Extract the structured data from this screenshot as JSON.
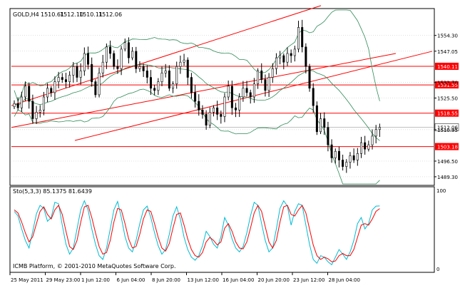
{
  "header": {
    "symbol": "GOLD,H4",
    "open": "1510.61",
    "high": "1512.10",
    "low": "1510.11",
    "close": "1512.06"
  },
  "indicator": {
    "label": "Sto(5,3,3) 85.1375 81.6439",
    "scale_top": "100",
    "scale_bottom": "0"
  },
  "watermark": "ICMB Platform, © 2001-2010 MetaQuotes Software Corp.",
  "colors": {
    "background": "#ffffff",
    "grid": "#c0c0c0",
    "axis_text": "#000000",
    "candle": "#000000",
    "channel": "#ff0000",
    "hline": "#ff0000",
    "bollinger": "#2e8b57",
    "stoch_main": "#00bcd4",
    "stoch_signal": "#ff0000"
  },
  "chart_data": {
    "type": "candlestick",
    "symbol": "GOLD",
    "timeframe": "H4",
    "ylim": [
      1486,
      1566
    ],
    "price_ticks": [
      "1554.30",
      "1547.05",
      "1532.70",
      "1525.50",
      "1510.95",
      "1496.50",
      "1489.30"
    ],
    "price_ticks_values": [
      1554.3,
      1547.05,
      1532.7,
      1525.5,
      1510.95,
      1496.5,
      1489.3
    ],
    "time_labels": [
      "25 May 2011",
      "29 May 23:00",
      "1 Jun 12:00",
      "6 Jun 04:00",
      "8 Jun 20:00",
      "13 Jun 12:00",
      "16 Jun 04:00",
      "20 Jun 20:00",
      "23 Jun 12:00",
      "28 Jun 04:00"
    ],
    "horizontal_levels": [
      {
        "label": "1540.11",
        "value": 1540.11
      },
      {
        "label": "1531.55",
        "value": 1531.55
      },
      {
        "label": "1518.55",
        "value": 1518.55
      },
      {
        "label": "1503.18",
        "value": 1503.18
      }
    ],
    "current_price": {
      "label": "1512.06",
      "value": 1512.06
    },
    "closes": [
      1523,
      1521,
      1526,
      1531,
      1524,
      1516,
      1519,
      1520,
      1526,
      1530,
      1528,
      1533,
      1535,
      1534,
      1533,
      1536,
      1540,
      1535,
      1538,
      1546,
      1541,
      1533,
      1527,
      1537,
      1542,
      1549,
      1546,
      1540,
      1539,
      1548,
      1551,
      1544,
      1547,
      1539,
      1540,
      1538,
      1535,
      1530,
      1529,
      1533,
      1537,
      1538,
      1530,
      1532,
      1540,
      1542,
      1543,
      1535,
      1528,
      1524,
      1520,
      1518,
      1513,
      1519,
      1521,
      1518,
      1517,
      1526,
      1531,
      1521,
      1520,
      1526,
      1530,
      1528,
      1526,
      1532,
      1538,
      1534,
      1529,
      1535,
      1539,
      1544,
      1545,
      1542,
      1546,
      1545,
      1548,
      1558,
      1549,
      1540,
      1530,
      1522,
      1510,
      1516,
      1512,
      1504,
      1498,
      1501,
      1497,
      1494,
      1496,
      1499,
      1497,
      1500,
      1505,
      1502,
      1504,
      1508,
      1511,
      1512.06
    ],
    "stochastic": {
      "k_period": 5,
      "d_period": 3,
      "slowing": 3,
      "main_last": 85.1375,
      "signal_last": 81.6439,
      "range": [
        0,
        100
      ],
      "main": [
        78,
        72,
        55,
        40,
        30,
        52,
        75,
        86,
        82,
        65,
        70,
        90,
        88,
        60,
        35,
        22,
        30,
        55,
        80,
        92,
        80,
        55,
        35,
        20,
        15,
        30,
        55,
        80,
        91,
        70,
        45,
        30,
        25,
        40,
        62,
        80,
        85,
        70,
        50,
        33,
        22,
        28,
        48,
        72,
        84,
        68,
        44,
        28,
        18,
        14,
        20,
        33,
        52,
        45,
        35,
        30,
        45,
        70,
        60,
        42,
        30,
        25,
        32,
        50,
        72,
        90,
        86,
        62,
        40,
        25,
        30,
        55,
        82,
        92,
        85,
        60,
        78,
        88,
        86,
        60,
        35,
        15,
        10,
        20,
        18,
        12,
        8,
        18,
        28,
        22,
        15,
        25,
        40,
        62,
        70,
        55,
        62,
        80,
        85,
        85.1375
      ],
      "signal": [
        80,
        76,
        64,
        50,
        38,
        45,
        62,
        78,
        84,
        74,
        68,
        80,
        86,
        74,
        52,
        32,
        28,
        40,
        64,
        84,
        86,
        70,
        50,
        32,
        22,
        24,
        40,
        64,
        82,
        80,
        62,
        42,
        30,
        32,
        48,
        68,
        80,
        78,
        62,
        44,
        30,
        26,
        36,
        56,
        74,
        76,
        60,
        42,
        28,
        20,
        18,
        24,
        38,
        44,
        40,
        34,
        38,
        56,
        62,
        52,
        38,
        30,
        29,
        38,
        56,
        76,
        86,
        78,
        58,
        38,
        30,
        40,
        64,
        84,
        86,
        74,
        72,
        80,
        86,
        76,
        55,
        34,
        20,
        15,
        18,
        16,
        12,
        13,
        20,
        23,
        20,
        20,
        28,
        44,
        60,
        62,
        60,
        68,
        78,
        81.6439
      ]
    }
  }
}
